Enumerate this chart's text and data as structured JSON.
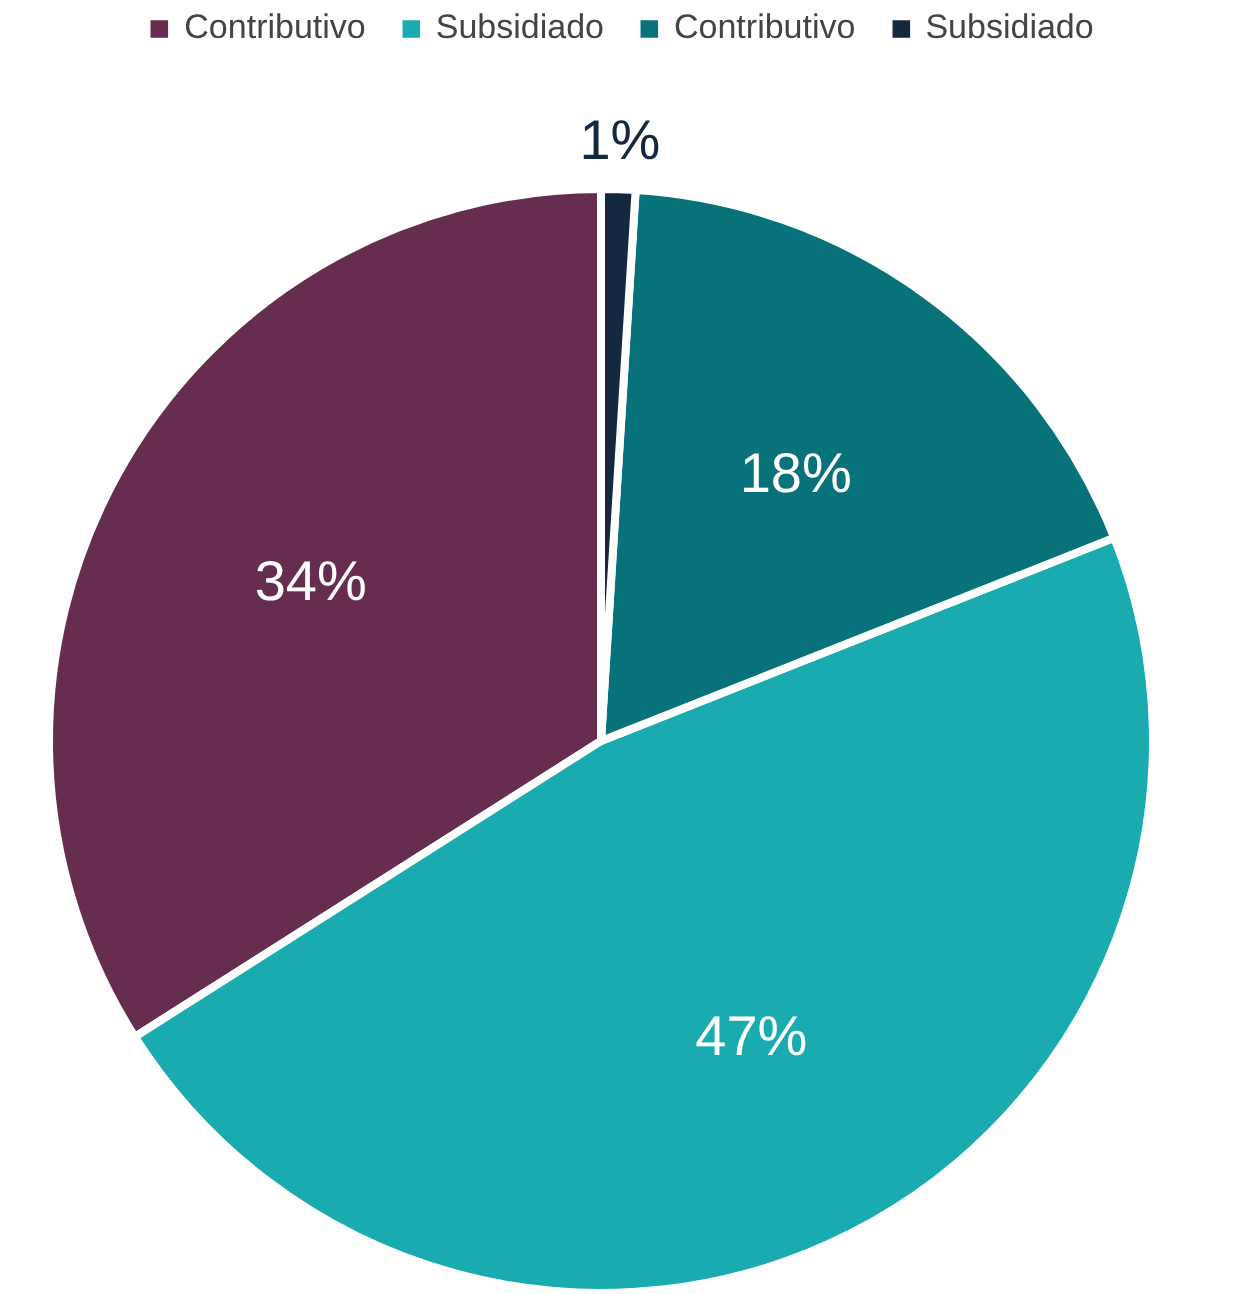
{
  "chart_data": {
    "type": "pie",
    "categories": [
      "Contributivo",
      "Subsidiado",
      "Contributivo",
      "Subsidiado"
    ],
    "values": [
      34,
      47,
      18,
      1
    ],
    "colors": [
      "#662d50",
      "#1aabb0",
      "#07727a",
      "#14283f"
    ],
    "value_labels": [
      "34%",
      "47%",
      "18%",
      "1%"
    ],
    "legend": "top"
  }
}
